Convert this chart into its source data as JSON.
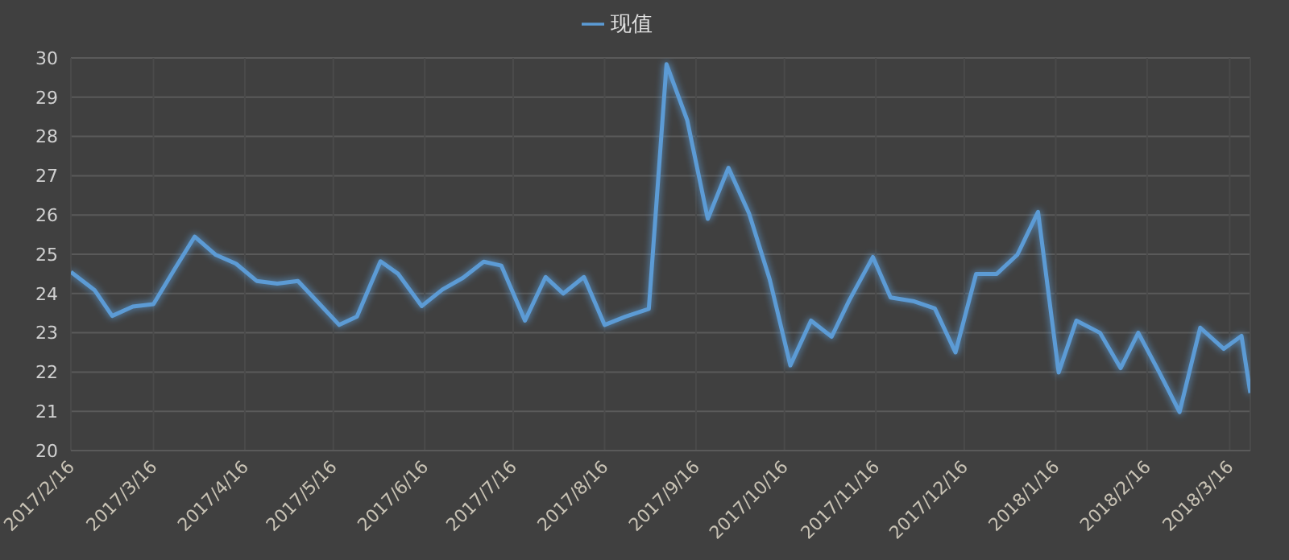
{
  "chart_data": {
    "type": "line",
    "legend": "top",
    "grid": true,
    "marker": "none",
    "line_style": "solid",
    "x": [
      "2017-02-16",
      "2017-02-24",
      "2017-03-02",
      "2017-03-09",
      "2017-03-16",
      "2017-03-23",
      "2017-03-30",
      "2017-04-06",
      "2017-04-13",
      "2017-04-20",
      "2017-04-27",
      "2017-05-04",
      "2017-05-11",
      "2017-05-18",
      "2017-05-24",
      "2017-06-01",
      "2017-06-07",
      "2017-06-15",
      "2017-06-22",
      "2017-06-29",
      "2017-07-06",
      "2017-07-12",
      "2017-07-20",
      "2017-07-27",
      "2017-08-02",
      "2017-08-09",
      "2017-08-16",
      "2017-08-23",
      "2017-08-31",
      "2017-09-06",
      "2017-09-13",
      "2017-09-20",
      "2017-09-27",
      "2017-10-04",
      "2017-10-11",
      "2017-10-18",
      "2017-10-25",
      "2017-11-01",
      "2017-11-07",
      "2017-11-15",
      "2017-11-21",
      "2017-11-29",
      "2017-12-06",
      "2017-12-13",
      "2017-12-20",
      "2017-12-27",
      "2018-01-03",
      "2018-01-10",
      "2018-01-17",
      "2018-01-23",
      "2018-01-31",
      "2018-02-07",
      "2018-02-13",
      "2018-02-20",
      "2018-02-27",
      "2018-03-06",
      "2018-03-14",
      "2018-03-20",
      "2018-03-23"
    ],
    "series": [
      {
        "name": "现值",
        "color": "#5b9bd5",
        "values": [
          24.55,
          24.09,
          23.43,
          23.67,
          23.73,
          24.6,
          25.45,
          24.99,
          24.76,
          24.32,
          24.25,
          24.32,
          23.76,
          23.2,
          23.41,
          24.82,
          24.5,
          23.68,
          24.1,
          24.4,
          24.81,
          24.71,
          23.31,
          24.42,
          24.0,
          24.42,
          23.2,
          23.41,
          23.61,
          29.84,
          28.42,
          25.9,
          27.2,
          26.04,
          24.36,
          22.17,
          23.31,
          22.9,
          23.83,
          24.93,
          23.9,
          23.8,
          23.62,
          22.5,
          24.5,
          24.5,
          24.99,
          26.08,
          21.99,
          23.31,
          23.0,
          22.1,
          23.0,
          22.01,
          20.98,
          23.13,
          22.59,
          22.92,
          21.47
        ]
      }
    ],
    "xlim": [
      "2017-02-16",
      "2018-03-23"
    ],
    "xticks": [
      {
        "value": "2017-02-16",
        "label": "2017/2/16"
      },
      {
        "value": "2017-03-16",
        "label": "2017/3/16"
      },
      {
        "value": "2017-04-16",
        "label": "2017/4/16"
      },
      {
        "value": "2017-05-16",
        "label": "2017/5/16"
      },
      {
        "value": "2017-06-16",
        "label": "2017/6/16"
      },
      {
        "value": "2017-07-16",
        "label": "2017/7/16"
      },
      {
        "value": "2017-08-16",
        "label": "2017/8/16"
      },
      {
        "value": "2017-09-16",
        "label": "2017/9/16"
      },
      {
        "value": "2017-10-16",
        "label": "2017/10/16"
      },
      {
        "value": "2017-11-16",
        "label": "2017/11/16"
      },
      {
        "value": "2017-12-16",
        "label": "2017/12/16"
      },
      {
        "value": "2018-01-16",
        "label": "2018/1/16"
      },
      {
        "value": "2018-02-16",
        "label": "2018/2/16"
      },
      {
        "value": "2018-03-16",
        "label": "2018/3/16"
      }
    ],
    "ylim": [
      20,
      30
    ],
    "yticks": [
      20,
      21,
      22,
      23,
      24,
      25,
      26,
      27,
      28,
      29,
      30
    ]
  }
}
